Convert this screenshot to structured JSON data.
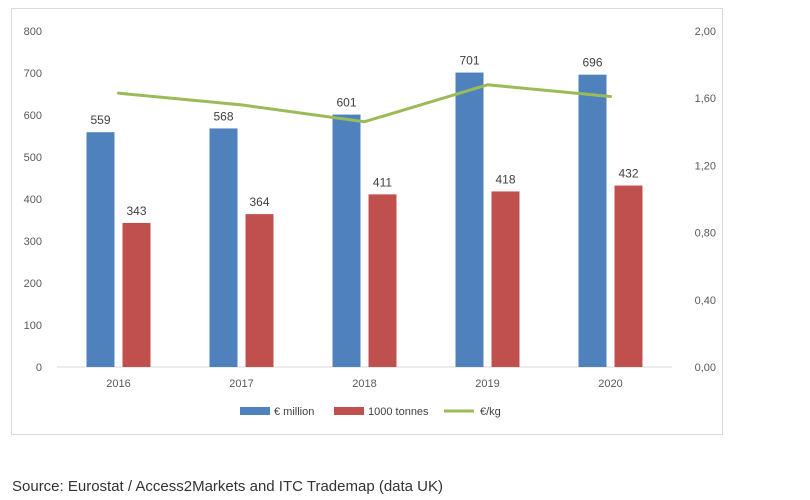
{
  "chart_data": {
    "type": "bar",
    "categories": [
      "2016",
      "2017",
      "2018",
      "2019",
      "2020"
    ],
    "series": [
      {
        "name": "€ million",
        "kind": "bar",
        "axis": "left",
        "color": "#4f81bd",
        "values": [
          559,
          568,
          601,
          701,
          696
        ]
      },
      {
        "name": "1000 tonnes",
        "kind": "bar",
        "axis": "left",
        "color": "#c0504d",
        "values": [
          343,
          364,
          411,
          418,
          432
        ]
      },
      {
        "name": "€/kg",
        "kind": "line",
        "axis": "right",
        "color": "#9bbb59",
        "values": [
          1.63,
          1.56,
          1.46,
          1.68,
          1.61
        ]
      }
    ],
    "left_axis": {
      "min": 0,
      "max": 800,
      "step": 100,
      "ticks": [
        "0",
        "100",
        "200",
        "300",
        "400",
        "500",
        "600",
        "700",
        "800"
      ]
    },
    "right_axis": {
      "min": 0,
      "max": 2.0,
      "step": 0.4,
      "ticks": [
        "0,00",
        "0,40",
        "0,80",
        "1,20",
        "1,60",
        "2,00"
      ]
    },
    "legend_position": "bottom",
    "grid": false
  },
  "source": "Source: Eurostat / Access2Markets and ITC Trademap (data UK)"
}
